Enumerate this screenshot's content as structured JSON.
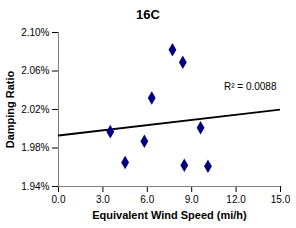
{
  "chart_data": {
    "type": "scatter",
    "title": "16C",
    "x_label": "Equivalent Wind Speed (mi/h)",
    "y_label": "Damping Ratio",
    "x": [
      3.5,
      4.5,
      5.8,
      6.3,
      7.7,
      8.4,
      8.5,
      9.6,
      10.1
    ],
    "values": [
      1.997,
      1.965,
      1.987,
      2.032,
      2.082,
      2.069,
      1.962,
      2.001,
      1.961
    ],
    "color": "#000080",
    "marker": "diamond",
    "trendline": {
      "x": [
        0,
        15
      ],
      "y": [
        1.993,
        2.02
      ],
      "color": "#000000"
    },
    "annotations": [
      "R² = 0.0088"
    ],
    "xlim": [
      0,
      15
    ],
    "xticks": [
      {
        "value": 0,
        "label": "0.0"
      },
      {
        "value": 3,
        "label": "3.0"
      },
      {
        "value": 6,
        "label": "6.0"
      },
      {
        "value": 9,
        "label": "9.0"
      },
      {
        "value": 12,
        "label": "12.0"
      },
      {
        "value": 15,
        "label": "15.0"
      }
    ],
    "ylim": [
      1.94,
      2.1
    ],
    "yticks": [
      {
        "value": 1.94,
        "label": "1.94%"
      },
      {
        "value": 1.98,
        "label": "1.98%"
      },
      {
        "value": 2.02,
        "label": "2.02%"
      },
      {
        "value": 2.06,
        "label": "2.06%"
      },
      {
        "value": 2.1,
        "label": "2.10%"
      }
    ],
    "grid": false
  }
}
